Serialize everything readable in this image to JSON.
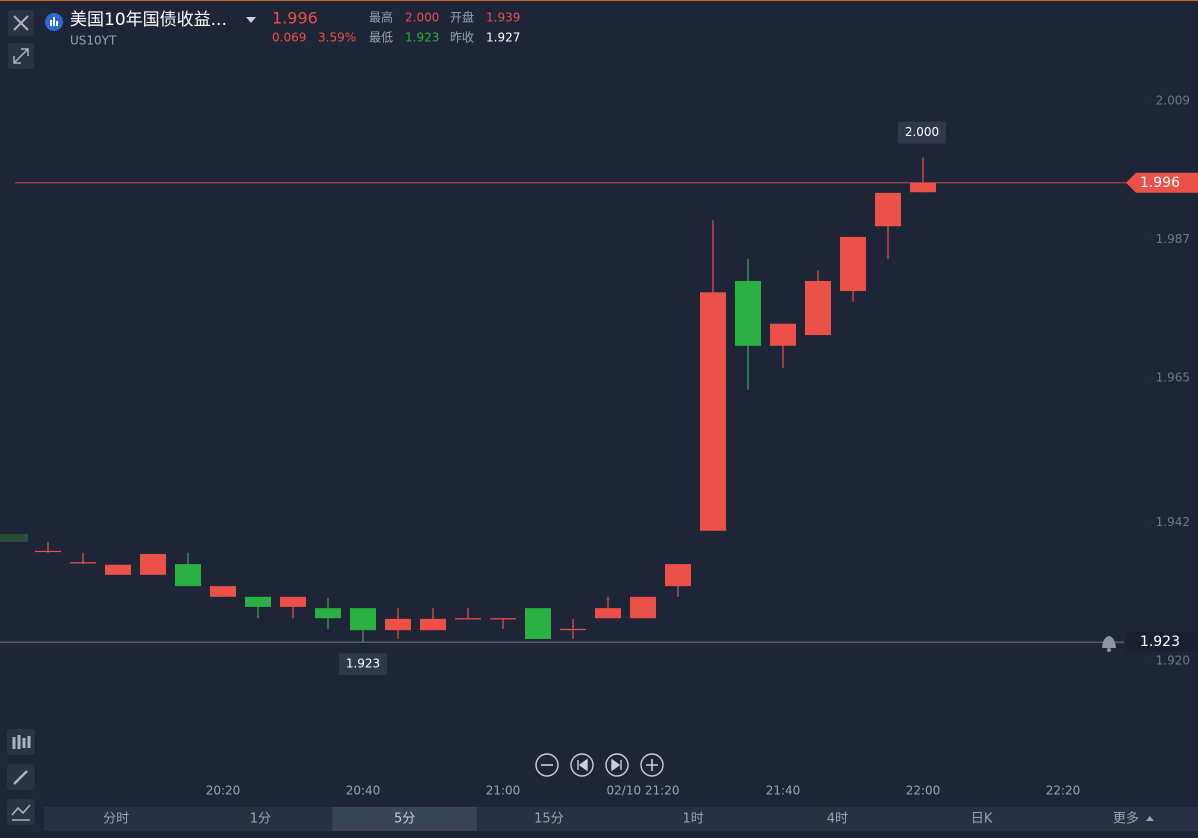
{
  "header": {
    "title": "美国10年国债收益...",
    "symbol": "US10YT",
    "price": "1.996",
    "change": "0.069",
    "change_pct": "3.59%",
    "stats": [
      {
        "label": "最高",
        "value": "2.000"
      },
      {
        "label": "开盘",
        "value": "1.939"
      },
      {
        "label": "最低",
        "value": "1.923"
      },
      {
        "label": "昨收",
        "value": "1.927"
      }
    ]
  },
  "chart_data": {
    "type": "candlestick",
    "categories": [
      null,
      null,
      null,
      null,
      null,
      "20:20",
      null,
      null,
      null,
      "20:40",
      null,
      null,
      null,
      "21:00",
      null,
      null,
      null,
      "02/10 21:20",
      null,
      null,
      null,
      "21:40",
      null,
      null,
      null,
      "22:00",
      null,
      null,
      null,
      "22:20"
    ],
    "open": [
      1.9375,
      1.9357,
      1.9337,
      1.9337,
      1.9354,
      1.9302,
      1.9302,
      1.9286,
      1.9284,
      1.9284,
      1.9249,
      1.9249,
      1.9268,
      1.9268,
      1.9284,
      1.9251,
      1.9268,
      1.9268,
      1.9319,
      1.9407,
      1.9804,
      1.9701,
      1.9718,
      1.9788,
      1.9891,
      1.9945,
      null,
      null,
      null,
      null
    ],
    "high": [
      1.9389,
      1.9372,
      1.9353,
      1.937,
      1.9372,
      1.9319,
      1.9302,
      1.9302,
      1.93,
      1.9284,
      1.9284,
      1.9284,
      1.9284,
      1.9268,
      1.9284,
      1.9267,
      1.9302,
      1.9302,
      1.9354,
      1.9901,
      1.9839,
      1.9736,
      1.9821,
      1.9874,
      1.9944,
      2.0,
      null,
      null,
      null,
      null
    ],
    "low": [
      1.9372,
      1.9354,
      1.9337,
      1.9337,
      1.9319,
      1.9302,
      1.9268,
      1.9268,
      1.9251,
      1.923,
      1.9235,
      1.9249,
      1.9268,
      1.9251,
      1.9235,
      1.9235,
      1.9268,
      1.9268,
      1.9302,
      1.9407,
      1.9631,
      1.9666,
      1.9718,
      1.9771,
      1.9839,
      1.9945,
      null,
      null,
      null,
      null
    ],
    "close": [
      1.9375,
      1.9357,
      1.9353,
      1.937,
      1.9319,
      1.9319,
      1.9286,
      1.9302,
      1.9268,
      1.9249,
      1.9267,
      1.9267,
      1.9268,
      1.9268,
      1.9235,
      1.9251,
      1.9284,
      1.9302,
      1.9354,
      1.9786,
      1.9701,
      1.9736,
      1.9804,
      1.9874,
      1.9944,
      1.996,
      null,
      null,
      null,
      null
    ],
    "up_color": "#ec5149",
    "down_color": "#2bb043",
    "ylim": [
      1.92,
      2.009
    ],
    "yticks": [
      2.009,
      1.987,
      1.965,
      1.942,
      {
        "value": 1.92,
        "label": "1.920"
      }
    ],
    "last_price": {
      "value": 1.996,
      "label": "1.996"
    },
    "high_marker": {
      "value": 2,
      "label": "2.000"
    },
    "low_marker": {
      "value": 1.923,
      "label": "1.923"
    }
  },
  "timeframes": [
    "分时",
    "1分",
    "5分",
    "15分",
    "1时",
    "4时",
    "日K",
    "更多"
  ]
}
